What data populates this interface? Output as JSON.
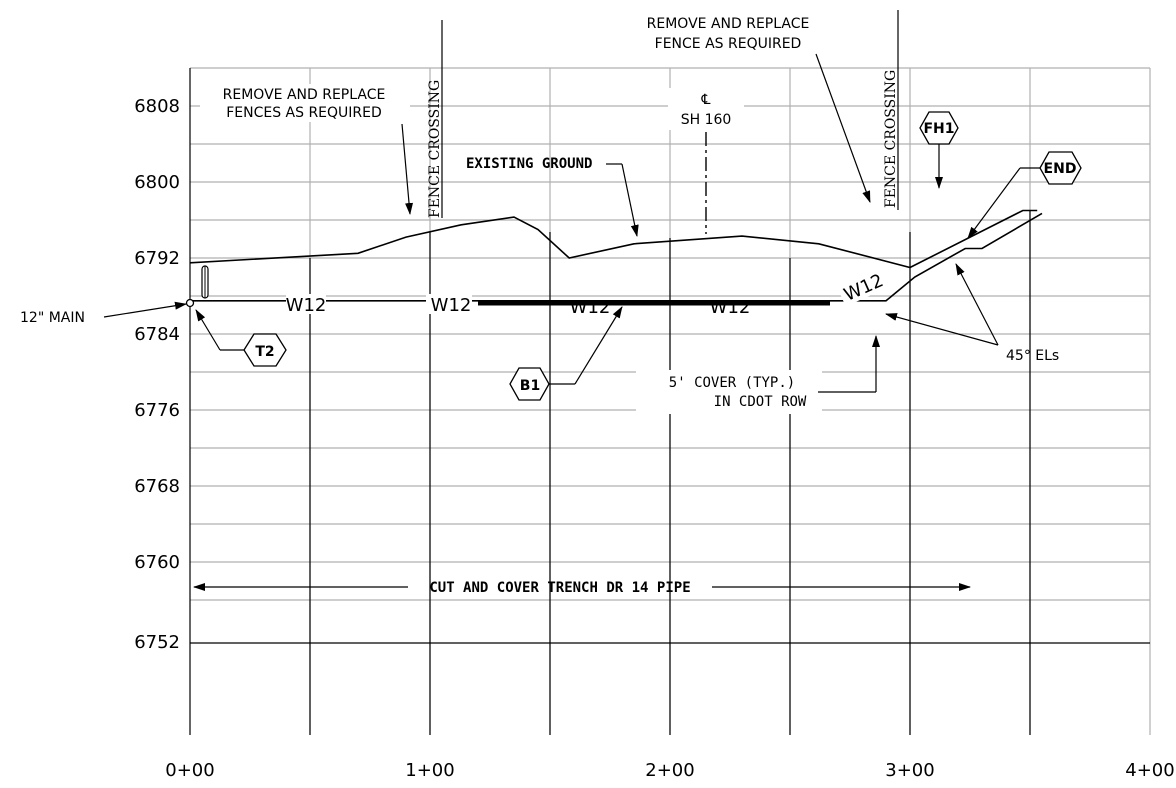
{
  "chart_data": {
    "type": "profile",
    "x_range_ft": [
      0,
      400
    ],
    "y_range_ft": [
      6744,
      6812
    ],
    "x_tick_labels": [
      "0+00",
      "1+00",
      "2+00",
      "3+00",
      "4+00"
    ],
    "y_tick_labels": [
      "6808",
      "6800",
      "6792",
      "6784",
      "6776",
      "6768",
      "6760",
      "6752"
    ],
    "series": [
      {
        "name": "EXISTING GROUND",
        "x": [
          0,
          70,
          90,
          113,
          135,
          145,
          158,
          185,
          230,
          262,
          300,
          347,
          353
        ],
        "y": [
          6791.5,
          6792.5,
          6794.2,
          6795.5,
          6796.3,
          6795,
          6792,
          6793.5,
          6794.3,
          6793.5,
          6791,
          6797,
          6797
        ]
      },
      {
        "name": "W12",
        "x": [
          0,
          290,
          302,
          323,
          330,
          355
        ],
        "y": [
          6787.5,
          6787.5,
          6790,
          6793,
          6793,
          6796.7
        ]
      }
    ]
  },
  "labels": {
    "fences_note": [
      "REMOVE AND REPLACE",
      "FENCES AS REQUIRED"
    ],
    "fence_note": [
      "REMOVE AND REPLACE",
      "FENCE AS REQUIRED"
    ],
    "fence_crossing": "FENCE CROSSING",
    "centerline_symbol": "℄",
    "centerline_road": "SH 160",
    "existing_ground": "EXISTING GROUND",
    "main": "12\" MAIN",
    "pipe": "W12",
    "cover": [
      "5' COVER (TYP.)",
      "IN CDOT ROW"
    ],
    "elbows": "45° ELs",
    "trench": "CUT AND COVER TRENCH DR 14 PIPE",
    "tag_t2": "T2",
    "tag_b1": "B1",
    "tag_fh1": "FH1",
    "tag_end": "END"
  }
}
